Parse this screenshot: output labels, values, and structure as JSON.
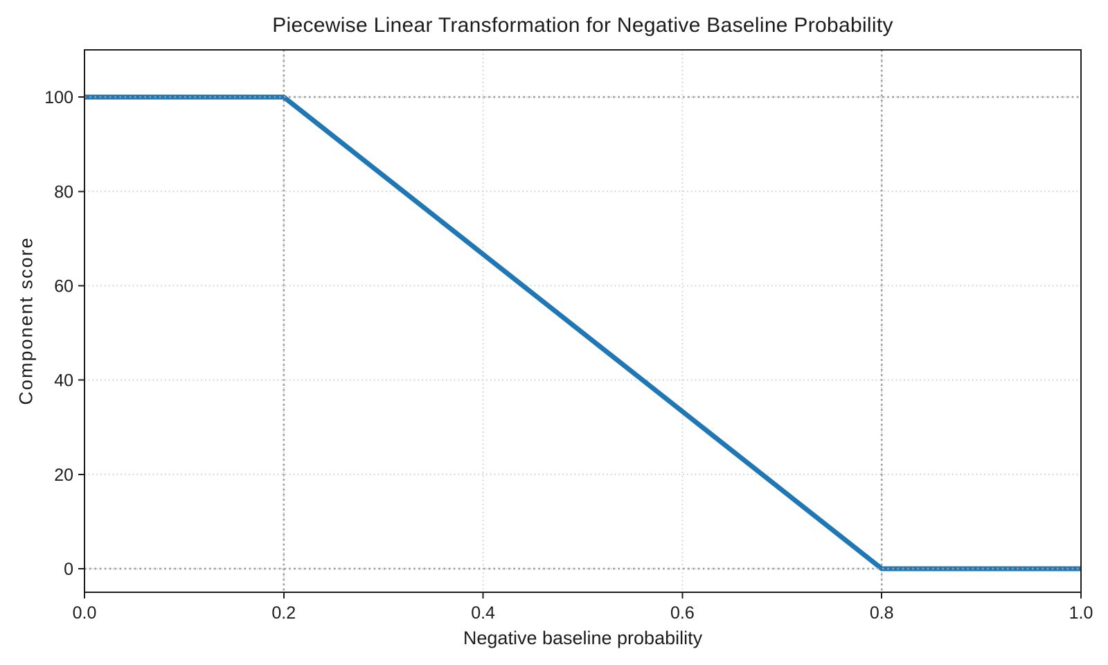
{
  "chart_data": {
    "type": "line",
    "title": "Piecewise Linear Transformation for Negative Baseline Probability",
    "xlabel": "Negative baseline probability",
    "ylabel": "Component score",
    "xlim": [
      0.0,
      1.0
    ],
    "ylim": [
      -5,
      110
    ],
    "x_ticks": [
      0.0,
      0.2,
      0.4,
      0.6,
      0.8,
      1.0
    ],
    "x_tick_labels": [
      "0.0",
      "0.2",
      "0.4",
      "0.6",
      "0.8",
      "1.0"
    ],
    "y_ticks": [
      0,
      20,
      40,
      60,
      80,
      100
    ],
    "y_tick_labels": [
      "0",
      "20",
      "40",
      "60",
      "80",
      "100"
    ],
    "grid": "dotted light gray at every tick",
    "legend": false,
    "series": [
      {
        "name": "component score piecewise line",
        "color": "#1f77b4",
        "x": [
          0.0,
          0.2,
          0.8,
          1.0
        ],
        "y": [
          100,
          100,
          0,
          0
        ]
      }
    ],
    "reference_lines": {
      "vertical_x": [
        0.2,
        0.8
      ],
      "horizontal_y": [
        0,
        100
      ],
      "style": "dotted",
      "color": "#9b9b9b"
    },
    "colors": {
      "line": "#1f77b4",
      "grid": "#cbcbcb",
      "reference": "#9b9b9b",
      "axis": "#1c1c1c",
      "background": "#ffffff"
    }
  }
}
